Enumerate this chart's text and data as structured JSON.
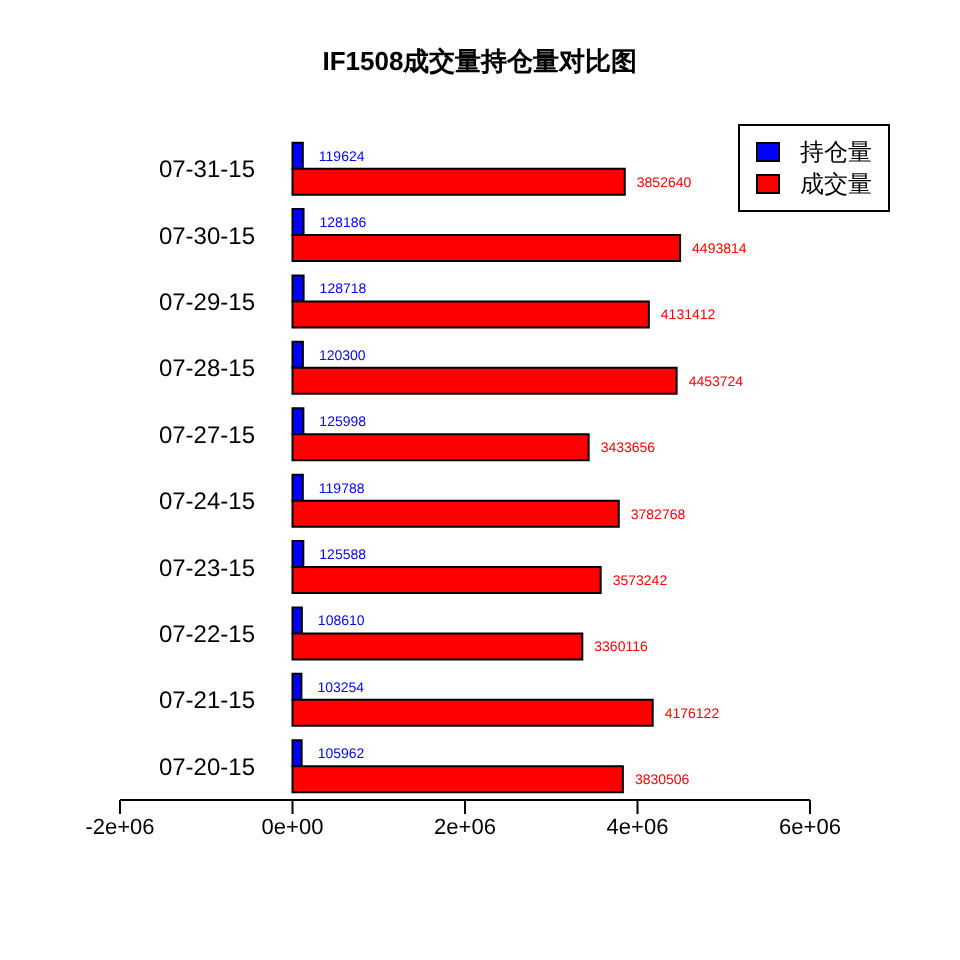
{
  "chart_data": {
    "type": "bar",
    "orientation": "horizontal",
    "title": "IF1508成交量持仓量对比图",
    "categories": [
      "07-31-15",
      "07-30-15",
      "07-29-15",
      "07-28-15",
      "07-27-15",
      "07-24-15",
      "07-23-15",
      "07-22-15",
      "07-21-15",
      "07-20-15"
    ],
    "series": [
      {
        "name": "持仓量",
        "color": "#0000ff",
        "values": [
          119624,
          128186,
          128718,
          120300,
          125998,
          119788,
          125588,
          108610,
          103254,
          105962
        ]
      },
      {
        "name": "成交量",
        "color": "#ff0000",
        "values": [
          3852640,
          4493814,
          4131412,
          4453724,
          3433656,
          3782768,
          3573242,
          3360116,
          4176122,
          3830506
        ]
      }
    ],
    "xlim": [
      -2000000,
      6000000
    ],
    "xticks": [
      {
        "value": -2000000,
        "label": "-2e+06"
      },
      {
        "value": 0,
        "label": "0e+00"
      },
      {
        "value": 2000000,
        "label": "2e+06"
      },
      {
        "value": 4000000,
        "label": "4e+06"
      },
      {
        "value": 6000000,
        "label": "6e+06"
      }
    ],
    "data_labels": true,
    "legend": "top right",
    "grid": false
  }
}
